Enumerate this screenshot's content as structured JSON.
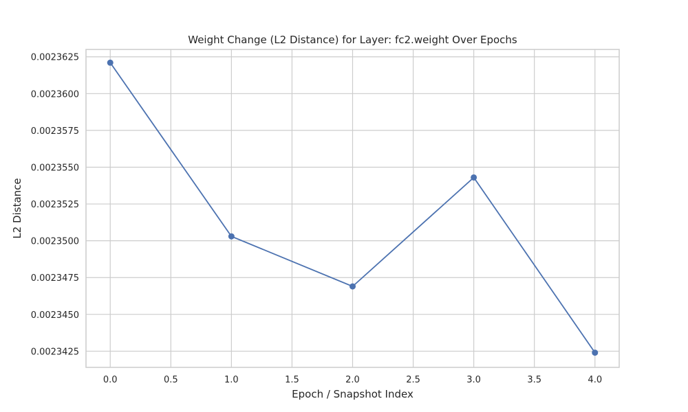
{
  "chart_data": {
    "type": "line",
    "title": "Weight Change (L2 Distance) for Layer: fc2.weight Over Epochs",
    "xlabel": "Epoch / Snapshot Index",
    "ylabel": "L2 Distance",
    "xlim": [
      -0.2,
      4.2
    ],
    "ylim": [
      0.0023414,
      0.002363
    ],
    "x_ticks": [
      0.0,
      0.5,
      1.0,
      1.5,
      2.0,
      2.5,
      3.0,
      3.5,
      4.0
    ],
    "x_tick_labels": [
      "0.0",
      "0.5",
      "1.0",
      "1.5",
      "2.0",
      "2.5",
      "3.0",
      "3.5",
      "4.0"
    ],
    "y_ticks": [
      0.0023425,
      0.002345,
      0.0023475,
      0.00235,
      0.0023525,
      0.002355,
      0.0023575,
      0.00236,
      0.0023625
    ],
    "y_tick_labels": [
      "0.0023425",
      "0.0023450",
      "0.0023475",
      "0.0023500",
      "0.0023525",
      "0.0023550",
      "0.0023575",
      "0.0023600",
      "0.0023625"
    ],
    "grid": true,
    "series": [
      {
        "x": [
          0,
          1,
          2,
          3,
          4
        ],
        "y": [
          0.0023621,
          0.0023503,
          0.0023469,
          0.0023543,
          0.0023424
        ],
        "color": "#4c72b0",
        "marker": "circle"
      }
    ]
  }
}
